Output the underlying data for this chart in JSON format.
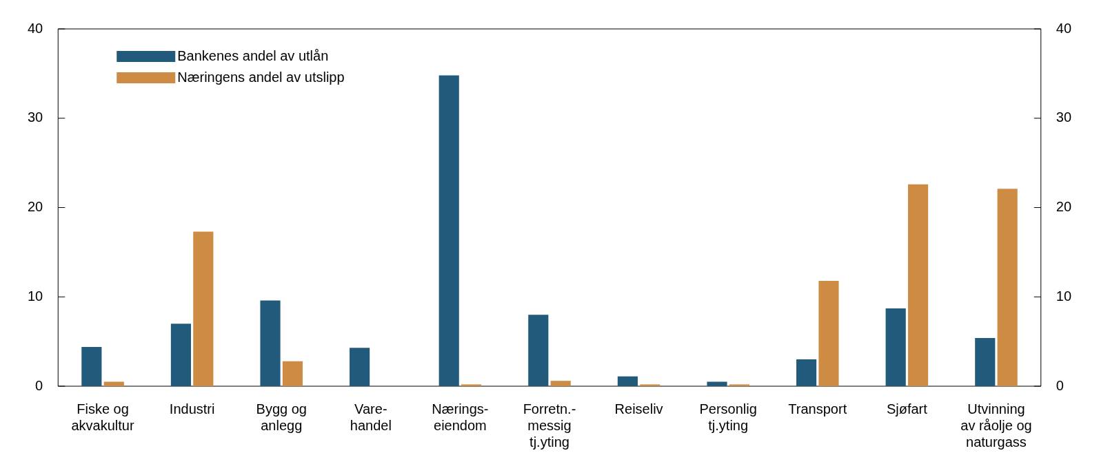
{
  "chart_data": {
    "type": "bar",
    "categories": [
      "Fiske og\nakvakultur",
      "Industri",
      "Bygg og\nanlegg",
      "Vare-\nhandel",
      "Nærings-\neiendom",
      "Forretn.-\nmessig\ntj.yting",
      "Reiseliv",
      "Personlig\ntj.yting",
      "Transport",
      "Sjøfart",
      "Utvinning\nav råolje og\nnaturgass"
    ],
    "series": [
      {
        "name": "Bankenes andel av utlån",
        "color": "#215a7a",
        "values": [
          4.4,
          7.0,
          9.6,
          4.3,
          34.8,
          8.0,
          1.1,
          0.5,
          3.0,
          8.7,
          5.4
        ]
      },
      {
        "name": "Næringens andel av utslipp",
        "color": "#cd8b43",
        "values": [
          0.5,
          17.3,
          2.8,
          0,
          0.2,
          0.6,
          0.2,
          0.2,
          11.8,
          22.6,
          22.1
        ]
      }
    ],
    "ylim": [
      0,
      40
    ],
    "yticks": [
      0,
      10,
      20,
      30,
      40
    ],
    "y2lim": [
      0,
      40
    ],
    "y2ticks": [
      0,
      10,
      20,
      30,
      40
    ],
    "grid": false,
    "legend": "top left"
  }
}
